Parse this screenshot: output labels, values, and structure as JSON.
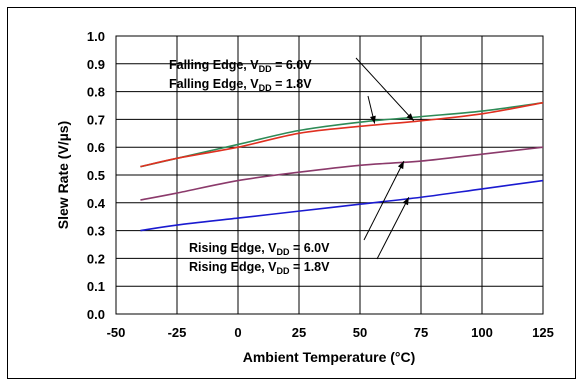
{
  "chart_data": {
    "type": "line",
    "xlabel": "Ambient Temperature (°C)",
    "ylabel": "Slew Rate (V/µs)",
    "xlim": [
      -50,
      125
    ],
    "ylim": [
      0.0,
      1.0
    ],
    "x_ticks": [
      "-50",
      "-25",
      "0",
      "25",
      "50",
      "75",
      "100",
      "125"
    ],
    "y_ticks": [
      "0.0",
      "0.1",
      "0.2",
      "0.3",
      "0.4",
      "0.5",
      "0.6",
      "0.7",
      "0.8",
      "0.9",
      "1.0"
    ],
    "grid": true,
    "series": [
      {
        "color": "#2e8b57",
        "x": [
          -40,
          -25,
          0,
          25,
          50,
          75,
          100,
          125
        ],
        "y": [
          0.53,
          0.56,
          0.61,
          0.66,
          0.69,
          0.71,
          0.73,
          0.76
        ]
      },
      {
        "color": "#e03020",
        "x": [
          -40,
          -25,
          0,
          25,
          50,
          75,
          100,
          125
        ],
        "y": [
          0.53,
          0.56,
          0.6,
          0.65,
          0.675,
          0.695,
          0.72,
          0.76
        ]
      },
      {
        "color": "#8b3a6b",
        "x": [
          -40,
          -25,
          0,
          25,
          50,
          75,
          100,
          125
        ],
        "y": [
          0.41,
          0.435,
          0.48,
          0.51,
          0.535,
          0.55,
          0.575,
          0.6
        ]
      },
      {
        "color": "#1a1ad0",
        "x": [
          -40,
          -25,
          0,
          25,
          50,
          75,
          100,
          125
        ],
        "y": [
          0.3,
          0.32,
          0.345,
          0.37,
          0.395,
          0.42,
          0.45,
          0.48
        ]
      }
    ],
    "annotations": [
      {
        "prefix": "Falling Edge, V",
        "sub": "DD",
        "suffix": " = 6.0V",
        "target": [
          72,
          0.695
        ]
      },
      {
        "prefix": "Falling Edge, V",
        "sub": "DD",
        "suffix": " = 1.8V",
        "target": [
          56,
          0.685
        ]
      },
      {
        "prefix": "Rising Edge, V",
        "sub": "DD",
        "suffix": " = 6.0V",
        "target": [
          68,
          0.55
        ]
      },
      {
        "prefix": "Rising Edge, V",
        "sub": "DD",
        "suffix": " = 1.8V",
        "target": [
          70,
          0.42
        ]
      }
    ]
  }
}
